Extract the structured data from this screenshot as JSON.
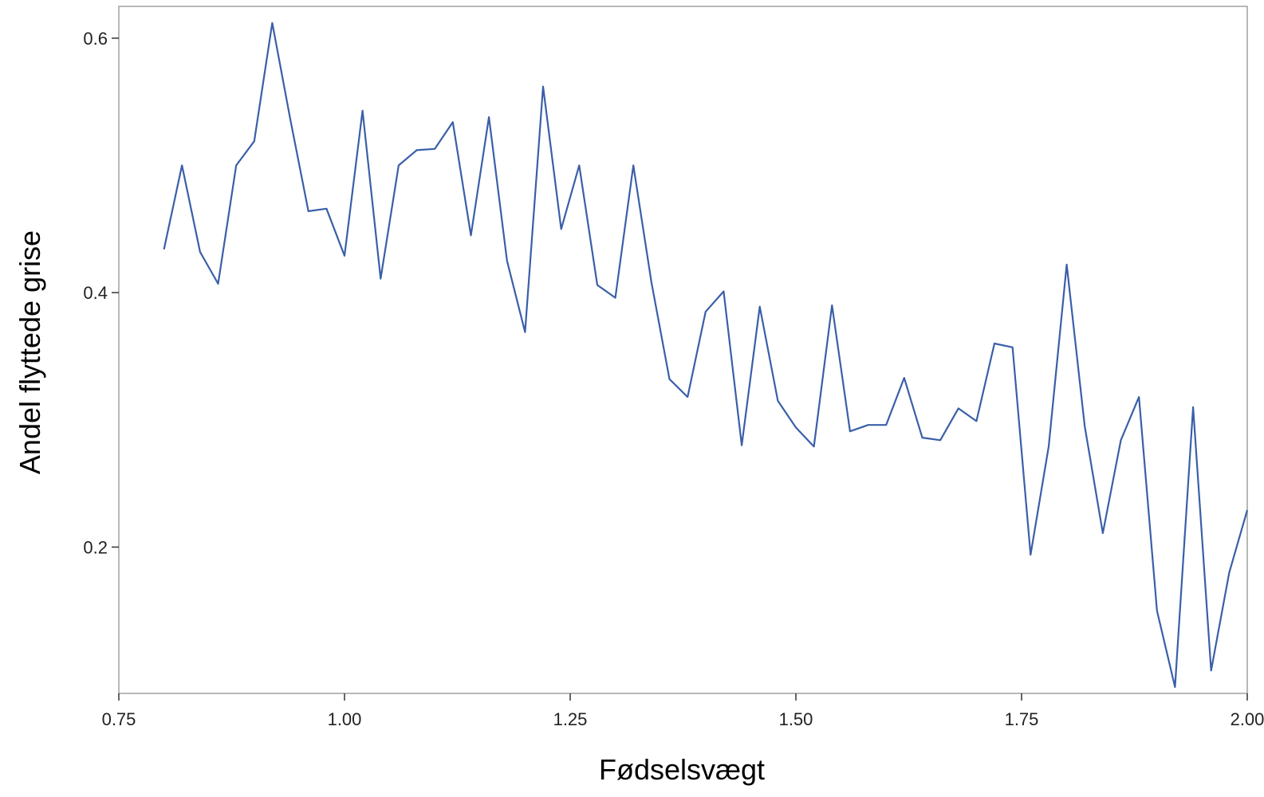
{
  "chart_data": {
    "type": "line",
    "title": "",
    "xlabel": "Fødselsvægt",
    "ylabel": "Andel flyttede grise",
    "xlim": [
      0.75,
      2.0
    ],
    "ylim": [
      0.085,
      0.625
    ],
    "xticks": [
      0.75,
      1.0,
      1.25,
      1.5,
      1.75,
      2.0
    ],
    "xtick_labels": [
      "0.75",
      "1.00",
      "1.25",
      "1.50",
      "1.75",
      "2.00"
    ],
    "yticks": [
      0.2,
      0.4,
      0.6
    ],
    "ytick_labels": [
      "0.2",
      "0.4",
      "0.6"
    ],
    "grid": false,
    "legend": "none",
    "line_color": "#3a5fa8",
    "series": [
      {
        "x": [
          0.8,
          0.82,
          0.84,
          0.86,
          0.88,
          0.9,
          0.92,
          0.94,
          0.96,
          0.98,
          1.0,
          1.02,
          1.04,
          1.06,
          1.08,
          1.1,
          1.12,
          1.14,
          1.16,
          1.18,
          1.2,
          1.22,
          1.24,
          1.26,
          1.28,
          1.3,
          1.32,
          1.34,
          1.36,
          1.38,
          1.4,
          1.42,
          1.44,
          1.46,
          1.48,
          1.5,
          1.52,
          1.54,
          1.56,
          1.58,
          1.6,
          1.62,
          1.64,
          1.66,
          1.68,
          1.7,
          1.72,
          1.74,
          1.76,
          1.78,
          1.8,
          1.82,
          1.84,
          1.86,
          1.88,
          1.9,
          1.92,
          1.94,
          1.96,
          1.98,
          2.0
        ],
        "values": [
          0.434,
          0.5,
          0.432,
          0.407,
          0.5,
          0.519,
          0.612,
          0.536,
          0.464,
          0.466,
          0.429,
          0.543,
          0.411,
          0.5,
          0.512,
          0.513,
          0.534,
          0.445,
          0.538,
          0.425,
          0.369,
          0.562,
          0.45,
          0.5,
          0.406,
          0.396,
          0.5,
          0.408,
          0.332,
          0.318,
          0.385,
          0.401,
          0.28,
          0.389,
          0.315,
          0.294,
          0.279,
          0.39,
          0.291,
          0.296,
          0.296,
          0.333,
          0.286,
          0.284,
          0.309,
          0.299,
          0.36,
          0.357,
          0.194,
          0.279,
          0.422,
          0.295,
          0.211,
          0.284,
          0.318,
          0.15,
          0.09,
          0.31,
          0.103,
          0.18,
          0.229
        ]
      }
    ]
  }
}
